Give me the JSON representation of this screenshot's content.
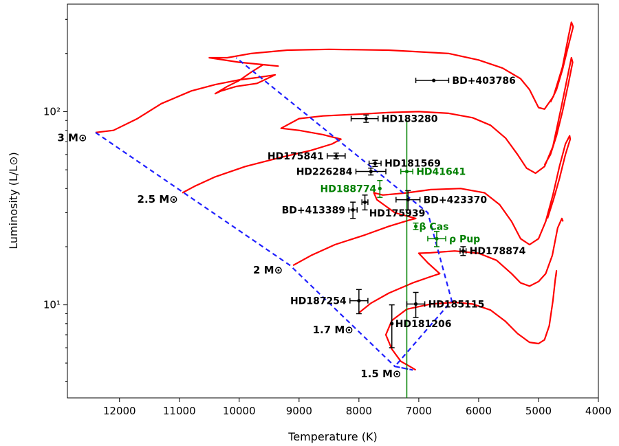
{
  "chart_data": {
    "type": "scatter",
    "title": "",
    "xlabel": "Temperature (K)",
    "ylabel": "Luminosity (L/L⊙)",
    "x_axis": {
      "inverted": true,
      "xlim": [
        12870,
        4000
      ],
      "ticks": [
        12000,
        11000,
        10000,
        9000,
        8000,
        7000,
        6000,
        5000,
        4000
      ]
    },
    "y_axis": {
      "scale": "log",
      "ylim": [
        3.3,
        360
      ],
      "major_ticks": [
        10,
        100
      ],
      "major_tick_labels": [
        "10¹",
        "10²"
      ]
    },
    "grid": false,
    "legend": "none",
    "colors": {
      "tracks": "#ff0000",
      "isochrone_dashed": "#1f1fff",
      "vertical_line": "#008000",
      "black_stars": "#000000",
      "green_stars": "#008000"
    },
    "vertical_line": {
      "x": 7200
    },
    "mass_labels": [
      {
        "text": "3 M⊙",
        "x": 12450,
        "y": 75
      },
      {
        "text": "2.5 M⊙",
        "x": 10930,
        "y": 36
      },
      {
        "text": "2 M⊙",
        "x": 9180,
        "y": 15.5
      },
      {
        "text": "1.7 M⊙",
        "x": 8000,
        "y": 7.6
      },
      {
        "text": "1.5 M⊙",
        "x": 7200,
        "y": 4.5
      }
    ],
    "stars": [
      {
        "name": "BD+403786",
        "color": "black",
        "x": 6750,
        "y": 145,
        "xerr": [
          300,
          250
        ],
        "yerr": [
          0,
          0
        ],
        "label_side": "right"
      },
      {
        "name": "HD183280",
        "color": "black",
        "x": 7880,
        "y": 92,
        "xerr": [
          250,
          200
        ],
        "yerr": [
          4,
          4
        ],
        "label_side": "right"
      },
      {
        "name": "HD175841",
        "color": "black",
        "x": 8380,
        "y": 59,
        "xerr": [
          150,
          150
        ],
        "yerr": [
          2,
          2
        ],
        "label_side": "left"
      },
      {
        "name": "HD181569",
        "color": "black",
        "x": 7730,
        "y": 54,
        "xerr": [
          100,
          100
        ],
        "yerr": [
          2,
          2
        ],
        "label_side": "right"
      },
      {
        "name": "HD226284",
        "color": "black",
        "x": 7800,
        "y": 49,
        "xerr": [
          250,
          250
        ],
        "yerr": [
          2,
          2
        ],
        "label_side": "left"
      },
      {
        "name": "HD41641",
        "color": "green",
        "x": 7200,
        "y": 49,
        "xerr": [
          100,
          100
        ],
        "yerr": [
          0,
          0
        ],
        "label_side": "right"
      },
      {
        "name": "HD188774",
        "color": "green",
        "x": 7650,
        "y": 40,
        "xerr": [
          0,
          0
        ],
        "yerr": [
          4,
          4
        ],
        "label_side": "left"
      },
      {
        "name": "BD+423370",
        "color": "black",
        "x": 7180,
        "y": 35,
        "xerr": [
          200,
          200
        ],
        "yerr": [
          4,
          4
        ],
        "label_side": "right"
      },
      {
        "name": "HD175939",
        "color": "black",
        "x": 7900,
        "y": 34,
        "xerr": [
          50,
          50
        ],
        "yerr": [
          3,
          3
        ],
        "label_side": "below-right"
      },
      {
        "name": "BD+413389",
        "color": "black",
        "x": 8100,
        "y": 31,
        "xerr": [
          70,
          70
        ],
        "yerr": [
          3,
          3
        ],
        "label_side": "left"
      },
      {
        "name": "β Cas",
        "color": "green",
        "x": 7050,
        "y": 25.5,
        "xerr": [
          0,
          0
        ],
        "yerr": [
          1,
          1
        ],
        "label_side": "right"
      },
      {
        "name": "ρ Pup",
        "color": "green",
        "x": 6700,
        "y": 22,
        "xerr": [
          150,
          150
        ],
        "yerr": [
          2,
          2
        ],
        "label_side": "right"
      },
      {
        "name": "HD178874",
        "color": "black",
        "x": 6260,
        "y": 19,
        "xerr": [
          50,
          50
        ],
        "yerr": [
          1,
          1
        ],
        "label_side": "right"
      },
      {
        "name": "HD187254",
        "color": "black",
        "x": 8000,
        "y": 10.5,
        "xerr": [
          150,
          150
        ],
        "yerr": [
          1.5,
          1.5
        ],
        "label_side": "left"
      },
      {
        "name": "HD185115",
        "color": "black",
        "x": 7050,
        "y": 10.1,
        "xerr": [
          150,
          150
        ],
        "yerr": [
          1.5,
          1.5
        ],
        "label_side": "right"
      },
      {
        "name": "HD181206",
        "color": "black",
        "x": 7450,
        "y": 8,
        "xerr": [
          0,
          0
        ],
        "yerr": [
          2,
          2
        ],
        "label_side": "right"
      }
    ],
    "isochrone_dashed": [
      {
        "x": 12400,
        "y": 78
      },
      {
        "x": 9150,
        "y": 16
      },
      {
        "x": 7400,
        "y": 4.8
      },
      {
        "x": 7100,
        "y": 4.6
      },
      {
        "x": 7400,
        "y": 4.8
      },
      {
        "x": 6450,
        "y": 10.5
      },
      {
        "x": 6850,
        "y": 30
      },
      {
        "x": 10050,
        "y": 190
      }
    ],
    "tracks": [
      {
        "name": "3 M⊙",
        "points": [
          [
            12400,
            78
          ],
          [
            12100,
            80
          ],
          [
            11700,
            92
          ],
          [
            11300,
            110
          ],
          [
            10800,
            128
          ],
          [
            10400,
            138
          ],
          [
            10000,
            146
          ],
          [
            9700,
            150
          ],
          [
            9400,
            155
          ],
          [
            9700,
            140
          ],
          [
            10050,
            135
          ],
          [
            10300,
            128
          ],
          [
            10400,
            124
          ],
          [
            10200,
            135
          ],
          [
            10000,
            145
          ],
          [
            9800,
            160
          ],
          [
            9600,
            175
          ],
          [
            9350,
            172
          ],
          [
            10000,
            180
          ],
          [
            10500,
            190
          ],
          [
            10200,
            190
          ],
          [
            9800,
            200
          ],
          [
            9200,
            208
          ],
          [
            8500,
            210
          ],
          [
            7500,
            208
          ],
          [
            6500,
            200
          ],
          [
            6000,
            185
          ],
          [
            5600,
            168
          ],
          [
            5300,
            148
          ],
          [
            5150,
            130
          ],
          [
            5000,
            105
          ],
          [
            4900,
            103
          ],
          [
            4750,
            120
          ],
          [
            4600,
            170
          ],
          [
            4500,
            245
          ],
          [
            4450,
            290
          ],
          [
            4420,
            275
          ],
          [
            4500,
            220
          ],
          [
            4600,
            165
          ],
          [
            4700,
            130
          ],
          [
            4800,
            112
          ]
        ]
      },
      {
        "name": "2.5 M⊙",
        "points": [
          [
            10950,
            38
          ],
          [
            10750,
            41
          ],
          [
            10400,
            46
          ],
          [
            9900,
            52
          ],
          [
            9300,
            58
          ],
          [
            8800,
            63
          ],
          [
            8450,
            68
          ],
          [
            8300,
            72
          ],
          [
            8600,
            76
          ],
          [
            9000,
            80
          ],
          [
            9300,
            82
          ],
          [
            9000,
            92
          ],
          [
            8600,
            95
          ],
          [
            8000,
            97
          ],
          [
            7500,
            99
          ],
          [
            7000,
            100
          ],
          [
            6500,
            98
          ],
          [
            6100,
            93
          ],
          [
            5800,
            85
          ],
          [
            5550,
            73
          ],
          [
            5350,
            60
          ],
          [
            5200,
            51
          ],
          [
            5050,
            48
          ],
          [
            4900,
            52
          ],
          [
            4760,
            66
          ],
          [
            4620,
            105
          ],
          [
            4500,
            160
          ],
          [
            4450,
            190
          ],
          [
            4430,
            180
          ],
          [
            4500,
            140
          ],
          [
            4600,
            100
          ],
          [
            4700,
            75
          ],
          [
            4800,
            60
          ],
          [
            4900,
            53
          ]
        ]
      },
      {
        "name": "2 M⊙",
        "points": [
          [
            9100,
            16
          ],
          [
            8800,
            18
          ],
          [
            8400,
            20.5
          ],
          [
            7900,
            23
          ],
          [
            7500,
            25.5
          ],
          [
            7150,
            27.5
          ],
          [
            7050,
            28
          ],
          [
            7400,
            30
          ],
          [
            7700,
            35
          ],
          [
            7750,
            38
          ],
          [
            7600,
            37
          ],
          [
            7200,
            38
          ],
          [
            6800,
            39.5
          ],
          [
            6300,
            40
          ],
          [
            5900,
            38
          ],
          [
            5650,
            33
          ],
          [
            5450,
            27
          ],
          [
            5300,
            22
          ],
          [
            5150,
            20.5
          ],
          [
            5000,
            22
          ],
          [
            4880,
            27
          ],
          [
            4760,
            37
          ],
          [
            4650,
            52
          ],
          [
            4550,
            68
          ],
          [
            4480,
            75
          ],
          [
            4470,
            72
          ],
          [
            4550,
            60
          ],
          [
            4650,
            45
          ],
          [
            4750,
            35
          ],
          [
            4850,
            28
          ]
        ]
      },
      {
        "name": "1.7 M⊙",
        "points": [
          [
            8000,
            9.1
          ],
          [
            7800,
            10.2
          ],
          [
            7500,
            11.5
          ],
          [
            7100,
            13
          ],
          [
            6800,
            14
          ],
          [
            6650,
            14.5
          ],
          [
            6850,
            16.5
          ],
          [
            7000,
            18.5
          ],
          [
            6800,
            18.6
          ],
          [
            6400,
            19
          ],
          [
            6000,
            18.5
          ],
          [
            5700,
            17
          ],
          [
            5450,
            14.5
          ],
          [
            5300,
            13
          ],
          [
            5150,
            12.5
          ],
          [
            5000,
            13.2
          ],
          [
            4880,
            14.5
          ],
          [
            4770,
            18
          ],
          [
            4680,
            25
          ],
          [
            4610,
            28
          ],
          [
            4590,
            27
          ]
        ]
      },
      {
        "name": "1.5 M⊙",
        "points": [
          [
            7050,
            4.6
          ],
          [
            7150,
            4.8
          ],
          [
            7300,
            5.1
          ],
          [
            7450,
            5.9
          ],
          [
            7550,
            7
          ],
          [
            7450,
            8.3
          ],
          [
            7200,
            9.5
          ],
          [
            6800,
            10.1
          ],
          [
            6400,
            10.3
          ],
          [
            6100,
            10.1
          ],
          [
            5800,
            9.4
          ],
          [
            5550,
            8.2
          ],
          [
            5350,
            7.1
          ],
          [
            5150,
            6.4
          ],
          [
            5000,
            6.3
          ],
          [
            4900,
            6.6
          ],
          [
            4820,
            7.8
          ],
          [
            4760,
            10.5
          ],
          [
            4720,
            13.5
          ],
          [
            4700,
            15
          ],
          [
            4710,
            14
          ]
        ]
      }
    ]
  }
}
